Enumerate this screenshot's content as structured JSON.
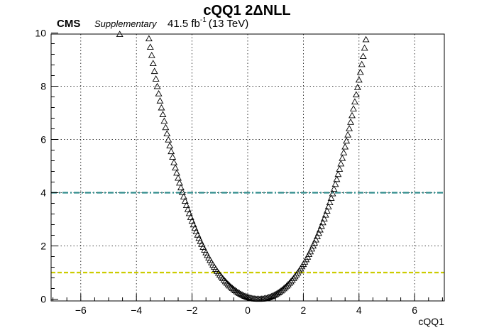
{
  "header": {
    "title": "cQQ1 2ΔNLL",
    "experiment": "CMS",
    "status": "Supplementary",
    "lumi": "41.5 fb",
    "lumi_sup": "-1",
    "energy": "(13 TeV)"
  },
  "chart_data": {
    "type": "scatter",
    "title": "cQQ1 2ΔNLL",
    "xlabel": "cQQ1",
    "ylabel": "",
    "xlim": [
      -7,
      7
    ],
    "ylim": [
      0,
      10
    ],
    "grid": true,
    "marker": "open-triangle",
    "xticks": [
      -6,
      -4,
      -2,
      0,
      2,
      4,
      6
    ],
    "xtick_labels": [
      "−6",
      "−4",
      "−2",
      "0",
      "2",
      "4",
      "6"
    ],
    "yticks": [
      0,
      2,
      4,
      6,
      8,
      10
    ],
    "ytick_labels": [
      "0",
      "2",
      "4",
      "6",
      "8",
      "10"
    ],
    "series": [
      {
        "name": "",
        "curve": {
          "center": 0.4,
          "left_a": 0.44,
          "right_a": 0.48,
          "left_scale": 0.66,
          "right_scale": 0.56,
          "x_min": -4.5,
          "x_max": 4.9,
          "step": 0.05
        },
        "extra_points": [
          [
            -4.6,
            9.95
          ]
        ]
      }
    ],
    "reference_lines": [
      {
        "y": 4,
        "color": "#2e8b8b",
        "style": "dash-dot"
      },
      {
        "y": 1,
        "color": "#cccc00",
        "style": "dashed"
      }
    ]
  }
}
